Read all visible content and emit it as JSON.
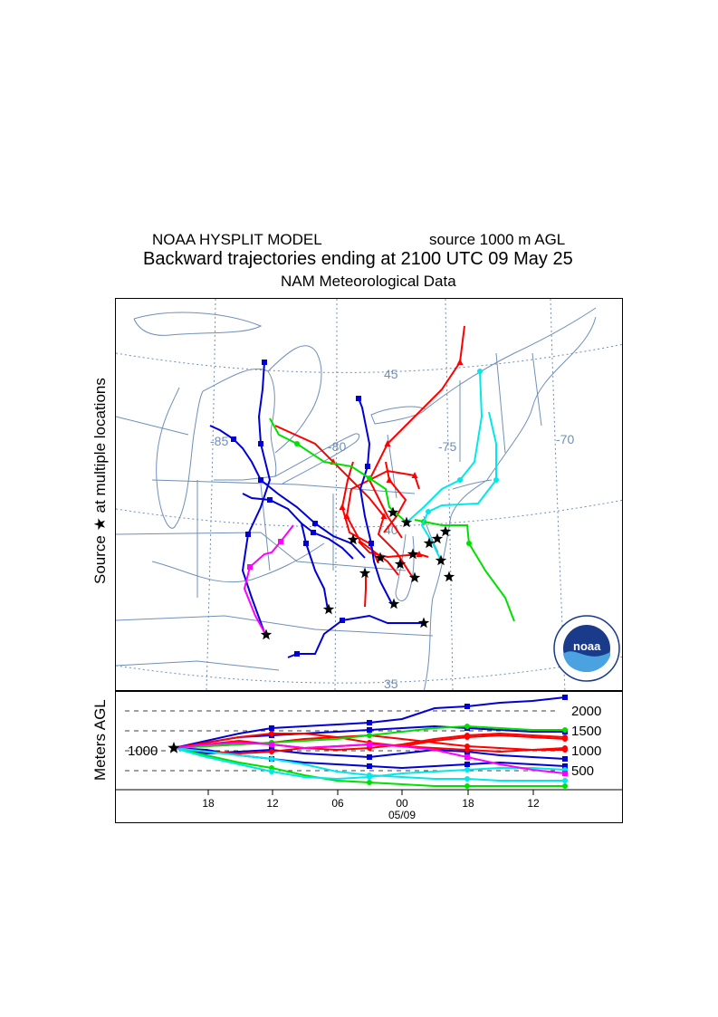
{
  "header": {
    "model": "NOAA HYSPLIT MODEL",
    "source": "source 1000 m AGL",
    "title": "Backward trajectories ending at 2100 UTC 09 May 25",
    "met": "NAM  Meteorological Data"
  },
  "side_labels": {
    "source": "Source ★ at multiple locations",
    "meters": "Meters AGL"
  },
  "map": {
    "lon_labels": [
      "-85",
      "-80",
      "-75",
      "-70"
    ],
    "lat_labels": [
      "45",
      "40",
      "35"
    ],
    "graticule_color": "#6f8fb9",
    "logo": {
      "text": "noaa",
      "icon": "noaa-logo-icon"
    },
    "star_icon": "source-star-icon",
    "trajectory_colors": {
      "red": "#ff0000",
      "blue": "#0000d6",
      "green": "#00e000",
      "cyan": "#00e8e8",
      "magenta": "#ff00ff"
    }
  },
  "elevation": {
    "y_labels": [
      "2000",
      "1500",
      "1000",
      "500"
    ],
    "start_label": "1000",
    "x_labels": [
      "18",
      "12",
      "06",
      "00",
      "18",
      "12"
    ],
    "date_label": "05/09"
  }
}
